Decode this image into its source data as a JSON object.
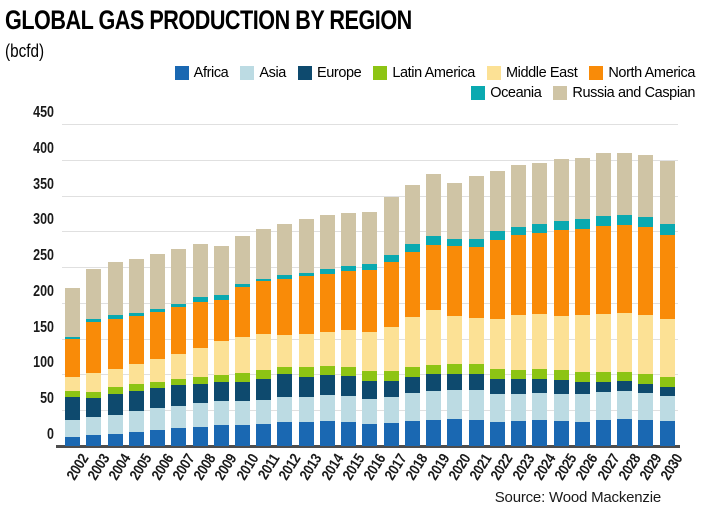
{
  "title": "GLOBAL GAS PRODUCTION BY REGION",
  "subtitle": "(bcfd)",
  "source": "Source: Wood Mackenzie",
  "chart_data": {
    "type": "bar",
    "stacked": true,
    "title": "GLOBAL GAS PRODUCTION BY REGION",
    "unit_label": "(bcfd)",
    "xlabel": "",
    "ylabel": "bcfd",
    "ylim": [
      0,
      450
    ],
    "yticks": [
      0,
      50,
      100,
      150,
      200,
      250,
      300,
      350,
      400,
      450
    ],
    "grid": true,
    "legend_position": "top-right",
    "legend_rows": [
      [
        "Africa",
        "Asia",
        "Europe",
        "Latin America",
        "Middle East",
        "North America"
      ],
      [
        "Oceania",
        "Russia and Caspian"
      ]
    ],
    "x": [
      "2002",
      "2003",
      "2004",
      "2005",
      "2006",
      "2007",
      "2008",
      "2009",
      "2010",
      "2011",
      "2012",
      "2013",
      "2014",
      "2015",
      "2016",
      "2017",
      "2018",
      "2019",
      "2020",
      "2021",
      "2022",
      "2023",
      "2024",
      "2025",
      "2026",
      "2027",
      "2028",
      "2029",
      "2030"
    ],
    "series": [
      {
        "name": "Africa",
        "color": "#1a68b2",
        "values": [
          13,
          15,
          17,
          19,
          22,
          25,
          27,
          29,
          30,
          31,
          33,
          34,
          35,
          34,
          31,
          32,
          35,
          37,
          38,
          37,
          34,
          35,
          36,
          35,
          34,
          37,
          38,
          37,
          35
        ]
      },
      {
        "name": "Asia",
        "color": "#bcdbe3",
        "values": [
          23,
          25,
          27,
          30,
          31,
          31,
          33,
          34,
          33,
          34,
          35,
          35,
          36,
          36,
          35,
          36,
          39,
          40,
          40,
          41,
          38,
          38,
          38,
          38,
          38,
          38,
          39,
          37,
          35
        ]
      },
      {
        "name": "Europe",
        "color": "#0e4a6e",
        "values": [
          32,
          27,
          29,
          28,
          28,
          29,
          27,
          27,
          27,
          28,
          32,
          28,
          28,
          28,
          25,
          23,
          23,
          23,
          22,
          22,
          21,
          20,
          20,
          19,
          18,
          15,
          14,
          13,
          13
        ]
      },
      {
        "name": "Latin America",
        "color": "#8dc414",
        "values": [
          9,
          9,
          10,
          9,
          8,
          8,
          9,
          9,
          12,
          13,
          10,
          13,
          13,
          13,
          14,
          14,
          14,
          13,
          14,
          15,
          14,
          13,
          13,
          14,
          14,
          14,
          13,
          13,
          13
        ]
      },
      {
        "name": "Middle East",
        "color": "#fce195",
        "values": [
          20,
          26,
          25,
          29,
          33,
          36,
          41,
          48,
          51,
          51,
          45,
          47,
          48,
          51,
          55,
          62,
          70,
          77,
          68,
          64,
          70,
          77,
          78,
          76,
          79,
          81,
          82,
          83,
          82
        ]
      },
      {
        "name": "North America",
        "color": "#f98b08",
        "values": [
          52,
          71,
          70,
          67,
          65,
          65,
          65,
          57,
          69,
          73,
          79,
          80,
          81,
          83,
          86,
          90,
          90,
          91,
          97,
          99,
          111,
          112,
          113,
          120,
          121,
          122,
          123,
          123,
          117
        ]
      },
      {
        "name": "Oceania",
        "color": "#0aa9b0",
        "values": [
          4,
          5,
          5,
          4,
          5,
          5,
          6,
          7,
          4,
          4,
          5,
          5,
          6,
          6,
          9,
          10,
          12,
          12,
          11,
          12,
          12,
          11,
          12,
          13,
          13,
          14,
          14,
          14,
          16
        ]
      },
      {
        "name": "Russia and Caspian",
        "color": "#cfc4a5",
        "values": [
          68,
          69,
          74,
          75,
          76,
          76,
          75,
          69,
          68,
          70,
          72,
          76,
          76,
          75,
          72,
          81,
          82,
          87,
          78,
          87,
          85,
          87,
          86,
          86,
          86,
          88,
          87,
          87,
          88
        ]
      }
    ]
  },
  "layout_colors": {
    "gridline": "#e0e0e0",
    "axis": "#4d4d4d",
    "text": "#1a1a1a"
  }
}
